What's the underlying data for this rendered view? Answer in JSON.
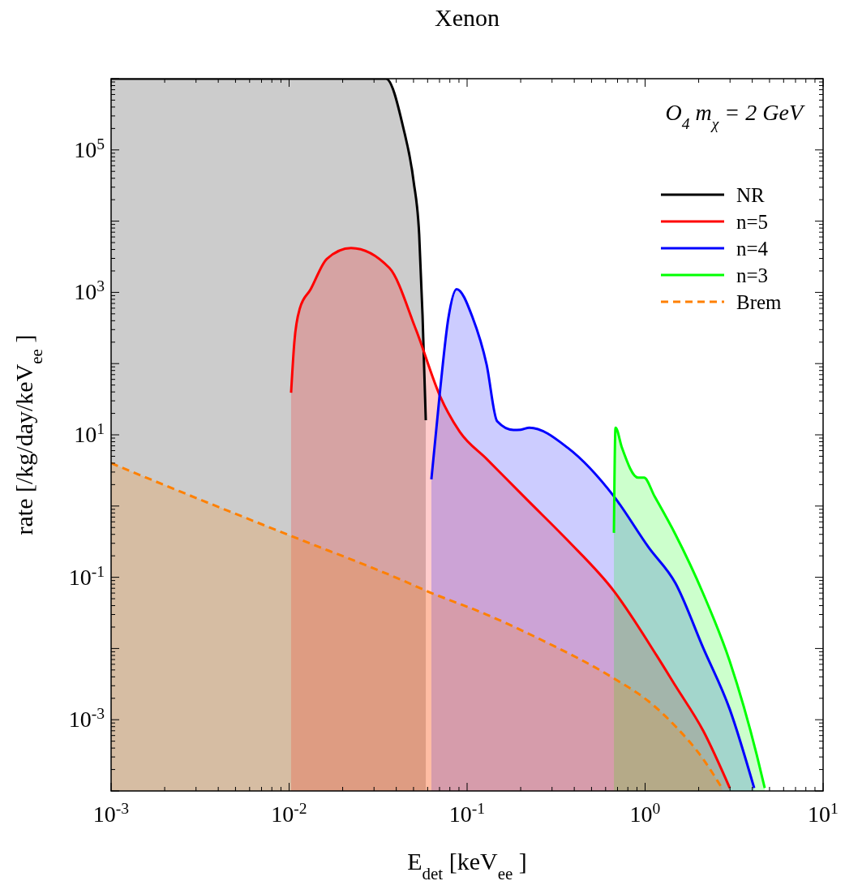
{
  "chart_data": {
    "type": "area",
    "title": "Xenon",
    "xlabel": "E$_{det}$ [keV$_{ee}$]",
    "ylabel": "rate [/kg/day/keV$_{ee}$]",
    "annotations": [
      "O$_{4}$  m$_{χ}$ = 2 GeV"
    ],
    "log": "xy",
    "xlim": [
      0.001,
      10
    ],
    "ylim": [
      0.0001,
      1000000
    ],
    "xticks": [
      {
        "value": 0.001,
        "label": "10$^{-3}$"
      },
      {
        "value": 0.01,
        "label": "10$^{-2}$"
      },
      {
        "value": 0.1,
        "label": "10$^{-1}$"
      },
      {
        "value": 1,
        "label": "10$^{0}$"
      },
      {
        "value": 10,
        "label": "10$^{1}$"
      }
    ],
    "yticks": [
      {
        "value": 0.0001,
        "label": null
      },
      {
        "value": 0.001,
        "label": "10$^{-3}$"
      },
      {
        "value": 0.01,
        "label": null
      },
      {
        "value": 0.1,
        "label": "10$^{-1}$"
      },
      {
        "value": 1,
        "label": null
      },
      {
        "value": 10,
        "label": "10$^{1}$"
      },
      {
        "value": 100,
        "label": null
      },
      {
        "value": 1000,
        "label": "10$^{3}$"
      },
      {
        "value": 10000,
        "label": null
      },
      {
        "value": 100000,
        "label": "10$^{5}$"
      },
      {
        "value": 1000000,
        "label": null
      }
    ],
    "legend": "top right",
    "grid": false,
    "series": [
      {
        "name": "NR",
        "color": "#000000",
        "x": [
          0.001,
          0.035,
          0.0437,
          0.05,
          0.0538,
          0.0562,
          0.0586
        ],
        "values": [
          1000000,
          1000000,
          210000,
          37000,
          6500,
          470,
          16
        ]
      },
      {
        "name": "n=5",
        "color": "#ff0000",
        "x": [
          0.01026,
          0.0107,
          0.0115,
          0.0132,
          0.0163,
          0.0223,
          0.0366,
          0.0516,
          0.0708,
          0.091,
          0.1286,
          0.217,
          0.367,
          0.668,
          1.16,
          1.48,
          2.12,
          2.99
        ],
        "values": [
          39,
          200,
          600,
          1100,
          2960,
          4200,
          2200,
          300,
          34,
          11,
          4.6,
          1.23,
          0.33,
          0.064,
          0.008,
          0.003,
          0.0007,
          0.00011
        ]
      },
      {
        "name": "n=4",
        "color": "#0000ff",
        "x": [
          0.063,
          0.0707,
          0.0785,
          0.0873,
          0.1076,
          0.1286,
          0.1475,
          0.182,
          0.2,
          0.224,
          0.367,
          0.668,
          1.05,
          1.48,
          2.12,
          2.99,
          4.1
        ],
        "values": [
          2.37,
          45,
          437,
          1110,
          437,
          98,
          15.5,
          11.7,
          11.8,
          12.6,
          6.6,
          1.37,
          0.26,
          0.083,
          0.0102,
          0.0014,
          0.00011
        ]
      },
      {
        "name": "n=3",
        "color": "#00ff00",
        "x": [
          0.668,
          0.682,
          0.741,
          0.914,
          0.986,
          1.13,
          1.48,
          2.12,
          2.99,
          4.24,
          4.7
        ],
        "values": [
          0.42,
          12.6,
          6.6,
          2.5,
          2.5,
          1.37,
          0.4,
          0.059,
          0.0066,
          0.00032,
          0.00011
        ]
      },
      {
        "name": "Brem",
        "color": "#ff8000",
        "line_style": "dashed",
        "x": [
          0.001,
          0.003,
          0.01,
          0.045,
          0.0586,
          0.1286,
          0.26,
          0.668,
          1.05,
          1.48,
          2.12,
          2.7
        ],
        "values": [
          4,
          1.3,
          0.39,
          0.087,
          0.065,
          0.03,
          0.0133,
          0.0038,
          0.0018,
          0.00081,
          0.00028,
          0.00011
        ]
      }
    ]
  }
}
